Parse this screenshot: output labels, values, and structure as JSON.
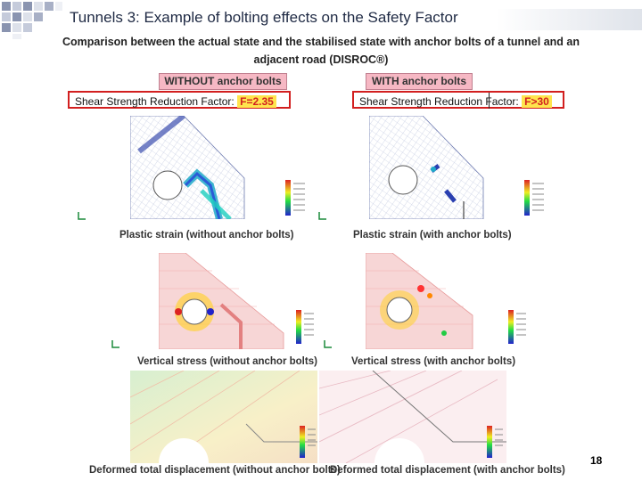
{
  "slide": {
    "title": "Tunnels 3: Example of bolting effects on the Safety Factor",
    "subtitle_line1": "Comparison between the actual state and the stabilised state with anchor bolts of a tunnel and an",
    "subtitle_line2": "adjacent road (DISROC®)",
    "page_number": "18"
  },
  "columns": {
    "left": {
      "header": "WITHOUT anchor bolts",
      "ssr_label": "Shear Strength Reduction Factor:",
      "ssr_value": "F=2.35"
    },
    "right": {
      "header": "WITH anchor bolts",
      "ssr_label": "Shear Strength Reduction Factor:",
      "ssr_value": "F>30"
    }
  },
  "captions": {
    "plastic_left": "Plastic strain (without anchor bolts)",
    "plastic_right": "Plastic strain (with anchor bolts)",
    "stress_left": "Vertical stress (without anchor bolts)",
    "stress_right": "Vertical stress (with anchor bolts)",
    "disp_left": "Deformed total displacement (without anchor bolts)",
    "disp_right": "Deformed total displacement (with anchor bolts)"
  },
  "colors": {
    "title_text": "#1f2a44",
    "frame_red": "#d21f1f",
    "factor_highlight": "#ffe44d",
    "header_pink": "#f6b8c4",
    "deco_squares": "#8a94b0"
  },
  "icons": [
    "square-pattern-decoration",
    "coordinate-axes-icon",
    "color-legend"
  ]
}
